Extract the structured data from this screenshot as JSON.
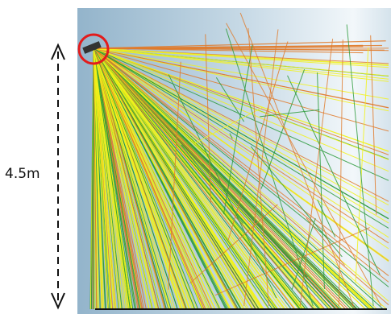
{
  "dimension": {
    "label": "4.5m"
  },
  "colors": {
    "background_dark": "#93b4cb",
    "background_light": "#f2f7fa",
    "ray_yellow": "#f2f21a",
    "ray_green": "#2a9a3a",
    "ray_orange": "#e07a2a",
    "highlight_circle": "#e31b1b",
    "floor": "#111111",
    "sensor": "#333333",
    "arrow": "#111111"
  },
  "icons": {
    "sensor": "sensor-device-icon",
    "highlight": "red-circle-icon"
  }
}
